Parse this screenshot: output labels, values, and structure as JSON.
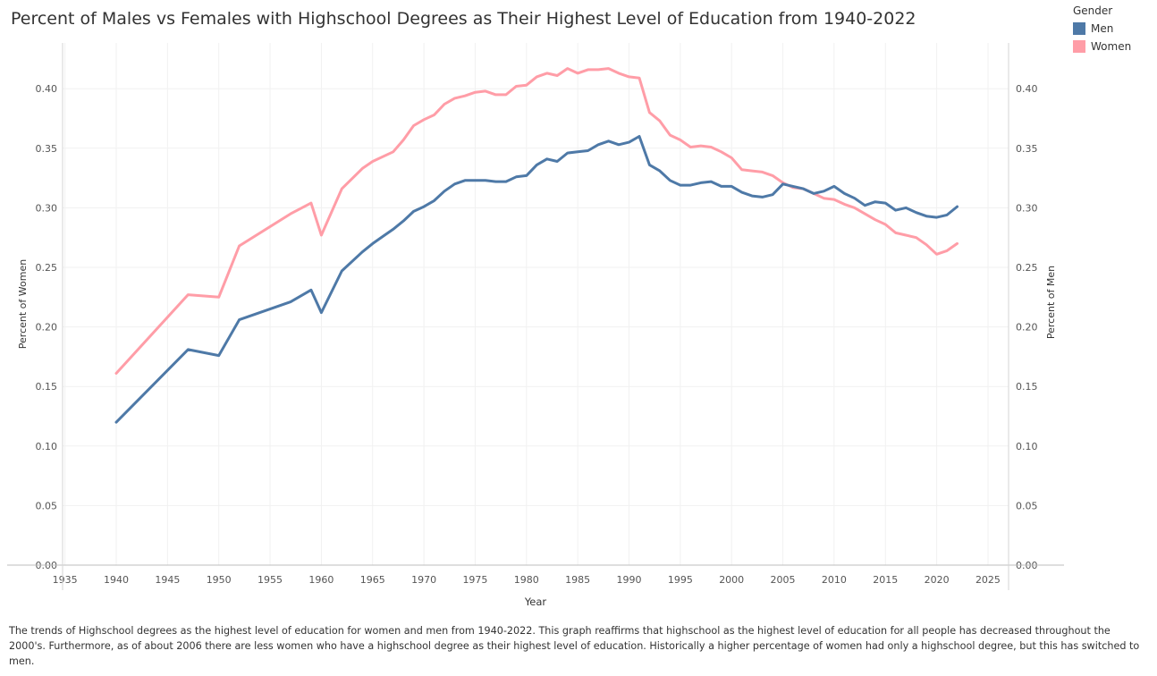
{
  "title": "Percent of Males vs Females with Highschool Degrees as Their Highest Level of Education from 1940-2022",
  "legend": {
    "title": "Gender",
    "items": [
      {
        "label": "Men",
        "color": "#4e79a7"
      },
      {
        "label": "Women",
        "color": "#ff9da7"
      }
    ]
  },
  "caption": "The trends of Highschool degrees as the highest  level of education for women and men from 1940-2022.  This graph reaffirms that highschool as the highest level of education for all people has decreased throughout the 2000's. Furthermore, as of about 2006 there are less women who have a highschool degree as their highest level of education.  Historically a higher percentage of women had only a highschool degree, but this has switched to men.",
  "chart_data": {
    "type": "line",
    "xlabel": "Year",
    "ylabel_left": "Percent of Women",
    "ylabel_right": "Percent of Men",
    "xlim": [
      1932,
      2030
    ],
    "ylim": [
      0,
      0.44
    ],
    "x_ticks": [
      1935,
      1940,
      1945,
      1950,
      1955,
      1960,
      1965,
      1970,
      1975,
      1980,
      1985,
      1990,
      1995,
      2000,
      2005,
      2010,
      2015,
      2020,
      2025
    ],
    "y_ticks": [
      "0.00",
      "0.05",
      "0.10",
      "0.15",
      "0.20",
      "0.25",
      "0.30",
      "0.35",
      "0.40"
    ],
    "grid": true,
    "legend_position": "top-right",
    "series": [
      {
        "name": "Women",
        "color": "#ff9da7",
        "axis": "left",
        "x": [
          1940,
          1947,
          1950,
          1952,
          1957,
          1959,
          1960,
          1962,
          1964,
          1965,
          1967,
          1968,
          1969,
          1970,
          1971,
          1972,
          1973,
          1974,
          1975,
          1976,
          1977,
          1978,
          1979,
          1980,
          1981,
          1982,
          1983,
          1984,
          1985,
          1986,
          1987,
          1988,
          1989,
          1990,
          1991,
          1992,
          1993,
          1994,
          1995,
          1996,
          1997,
          1998,
          1999,
          2000,
          2001,
          2002,
          2003,
          2004,
          2005,
          2006,
          2007,
          2008,
          2009,
          2010,
          2011,
          2012,
          2013,
          2014,
          2015,
          2016,
          2017,
          2018,
          2019,
          2020,
          2021,
          2022
        ],
        "values": [
          0.161,
          0.227,
          0.225,
          0.268,
          0.295,
          0.304,
          0.277,
          0.316,
          0.333,
          0.339,
          0.347,
          0.357,
          0.369,
          0.374,
          0.378,
          0.387,
          0.392,
          0.394,
          0.397,
          0.398,
          0.395,
          0.395,
          0.402,
          0.403,
          0.41,
          0.413,
          0.411,
          0.417,
          0.413,
          0.416,
          0.416,
          0.417,
          0.413,
          0.41,
          0.409,
          0.38,
          0.373,
          0.361,
          0.357,
          0.351,
          0.352,
          0.351,
          0.347,
          0.342,
          0.332,
          0.331,
          0.33,
          0.327,
          0.321,
          0.317,
          0.316,
          0.312,
          0.308,
          0.307,
          0.303,
          0.3,
          0.295,
          0.29,
          0.286,
          0.279,
          0.277,
          0.275,
          0.269,
          0.261,
          0.264,
          0.27
        ]
      },
      {
        "name": "Men",
        "color": "#4e79a7",
        "axis": "right",
        "x": [
          1940,
          1947,
          1950,
          1952,
          1957,
          1959,
          1960,
          1962,
          1964,
          1965,
          1966,
          1967,
          1968,
          1969,
          1970,
          1971,
          1972,
          1973,
          1974,
          1975,
          1976,
          1977,
          1978,
          1979,
          1980,
          1981,
          1982,
          1983,
          1984,
          1985,
          1986,
          1987,
          1988,
          1989,
          1990,
          1991,
          1992,
          1993,
          1994,
          1995,
          1996,
          1997,
          1998,
          1999,
          2000,
          2001,
          2002,
          2003,
          2004,
          2005,
          2006,
          2007,
          2008,
          2009,
          2010,
          2011,
          2012,
          2013,
          2014,
          2015,
          2016,
          2017,
          2018,
          2019,
          2020,
          2021,
          2022
        ],
        "values": [
          0.12,
          0.181,
          0.176,
          0.206,
          0.221,
          0.231,
          0.212,
          0.247,
          0.263,
          0.27,
          0.276,
          0.282,
          0.289,
          0.297,
          0.301,
          0.306,
          0.314,
          0.32,
          0.323,
          0.323,
          0.323,
          0.322,
          0.322,
          0.326,
          0.327,
          0.336,
          0.341,
          0.339,
          0.346,
          0.347,
          0.348,
          0.353,
          0.356,
          0.353,
          0.355,
          0.36,
          0.336,
          0.331,
          0.323,
          0.319,
          0.319,
          0.321,
          0.322,
          0.318,
          0.318,
          0.313,
          0.31,
          0.309,
          0.311,
          0.32,
          0.318,
          0.316,
          0.312,
          0.314,
          0.318,
          0.312,
          0.308,
          0.302,
          0.305,
          0.304,
          0.298,
          0.3,
          0.296,
          0.293,
          0.292,
          0.294,
          0.301
        ]
      }
    ]
  }
}
